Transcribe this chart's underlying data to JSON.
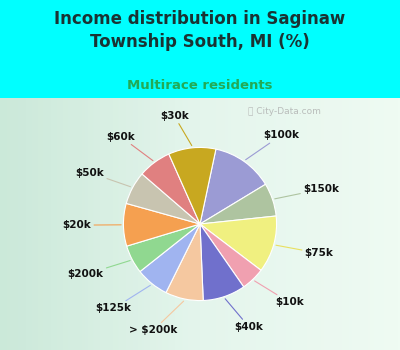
{
  "title": "Income distribution in Saginaw\nTownship South, MI (%)",
  "subtitle": "Multirace residents",
  "title_color": "#1a3333",
  "subtitle_color": "#22aa55",
  "background_color": "#00ffff",
  "chart_bg_color": "#d8ede0",
  "watermark": "ⓘ City-Data.com",
  "labels": [
    "$100k",
    "$150k",
    "$75k",
    "$10k",
    "$40k",
    "> $200k",
    "$125k",
    "$200k",
    "$20k",
    "$50k",
    "$60k",
    "$30k"
  ],
  "values": [
    13,
    7,
    12,
    5,
    9,
    8,
    7,
    6,
    9,
    7,
    7,
    10
  ],
  "colors": [
    "#9b9bd4",
    "#aec4a0",
    "#f0f080",
    "#f0a0b0",
    "#7070cc",
    "#f5c8a0",
    "#a0b4f0",
    "#90d890",
    "#f5a050",
    "#c8c4b0",
    "#e08080",
    "#c8a820"
  ],
  "line_colors": [
    "#9b9bd4",
    "#aec4a0",
    "#e8e060",
    "#f0a0b0",
    "#7070cc",
    "#f5c8a0",
    "#a0b4f0",
    "#90d890",
    "#f5a050",
    "#c8c4b0",
    "#e08080",
    "#c8a820"
  ],
  "label_fontsize": 7.5,
  "title_fontsize": 12,
  "subtitle_fontsize": 9.5,
  "startangle": 78
}
